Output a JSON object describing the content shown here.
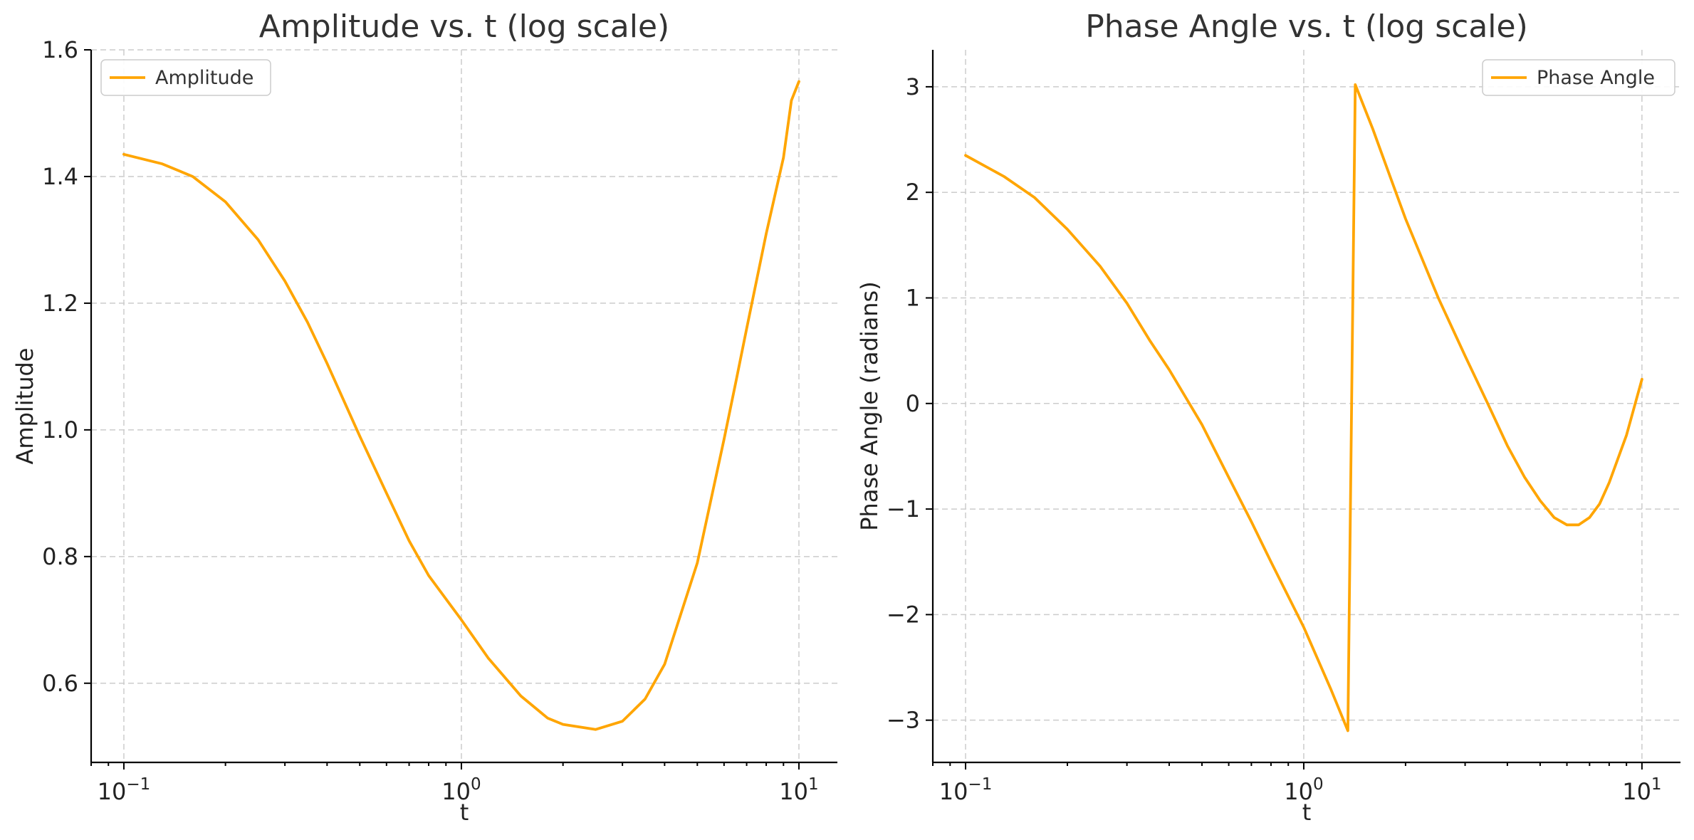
{
  "accent_color": "#FFA500",
  "chart_data": [
    {
      "type": "line",
      "title": "Amplitude vs. t (log scale)",
      "xlabel": "t",
      "ylabel": "Amplitude",
      "xscale": "log",
      "xlim": [
        0.08,
        13
      ],
      "ylim": [
        0.475,
        1.6
      ],
      "xticks": [
        {
          "value": 0.1,
          "base": "10",
          "exp": "−1"
        },
        {
          "value": 1,
          "base": "10",
          "exp": "0"
        },
        {
          "value": 10,
          "base": "10",
          "exp": "1"
        }
      ],
      "yticks": [
        {
          "value": 0.6,
          "label": "0.6"
        },
        {
          "value": 0.8,
          "label": "0.8"
        },
        {
          "value": 1.0,
          "label": "1.0"
        },
        {
          "value": 1.2,
          "label": "1.2"
        },
        {
          "value": 1.4,
          "label": "1.4"
        },
        {
          "value": 1.6,
          "label": "1.6"
        }
      ],
      "grid": true,
      "legend": "top-left",
      "series": [
        {
          "name": "Amplitude",
          "color": "#FFA500",
          "x": [
            0.1,
            0.13,
            0.16,
            0.2,
            0.25,
            0.3,
            0.35,
            0.4,
            0.5,
            0.6,
            0.7,
            0.8,
            1.0,
            1.2,
            1.5,
            1.8,
            2.0,
            2.5,
            3.0,
            3.5,
            4.0,
            5.0,
            6.0,
            6.5,
            7.0,
            8.0,
            9.0,
            9.5,
            10.0
          ],
          "y": [
            1.435,
            1.42,
            1.4,
            1.36,
            1.3,
            1.235,
            1.17,
            1.105,
            0.99,
            0.9,
            0.825,
            0.77,
            0.7,
            0.64,
            0.58,
            0.545,
            0.535,
            0.527,
            0.54,
            0.575,
            0.63,
            0.79,
            0.985,
            1.075,
            1.16,
            1.31,
            1.43,
            1.52,
            1.55
          ]
        }
      ]
    },
    {
      "type": "line",
      "title": "Phase Angle vs. t (log scale)",
      "xlabel": "t",
      "ylabel": "Phase Angle (radians)",
      "xscale": "log",
      "xlim": [
        0.08,
        13
      ],
      "ylim": [
        -3.4,
        3.35
      ],
      "xticks": [
        {
          "value": 0.1,
          "base": "10",
          "exp": "−1"
        },
        {
          "value": 1,
          "base": "10",
          "exp": "0"
        },
        {
          "value": 10,
          "base": "10",
          "exp": "1"
        }
      ],
      "yticks": [
        {
          "value": -3,
          "label": "−3"
        },
        {
          "value": -2,
          "label": "−2"
        },
        {
          "value": -1,
          "label": "−1"
        },
        {
          "value": 0,
          "label": "0"
        },
        {
          "value": 1,
          "label": "1"
        },
        {
          "value": 2,
          "label": "2"
        },
        {
          "value": 3,
          "label": "3"
        }
      ],
      "grid": true,
      "legend": "top-right",
      "series": [
        {
          "name": "Phase Angle",
          "color": "#FFA500",
          "x": [
            0.1,
            0.13,
            0.16,
            0.2,
            0.25,
            0.3,
            0.35,
            0.4,
            0.5,
            0.6,
            0.7,
            0.8,
            1.0,
            1.2,
            1.35,
            1.42,
            1.6,
            1.8,
            2.0,
            2.5,
            3.0,
            3.5,
            4.0,
            4.5,
            5.0,
            5.5,
            6.0,
            6.5,
            7.0,
            7.5,
            8.0,
            9.0,
            10.0
          ],
          "y": [
            2.35,
            2.15,
            1.95,
            1.65,
            1.3,
            0.95,
            0.6,
            0.32,
            -0.2,
            -0.7,
            -1.12,
            -1.5,
            -2.12,
            -2.7,
            -3.1,
            3.02,
            2.6,
            2.15,
            1.75,
            1.0,
            0.45,
            0.0,
            -0.4,
            -0.7,
            -0.92,
            -1.08,
            -1.15,
            -1.15,
            -1.08,
            -0.95,
            -0.75,
            -0.3,
            0.23
          ]
        }
      ]
    }
  ]
}
